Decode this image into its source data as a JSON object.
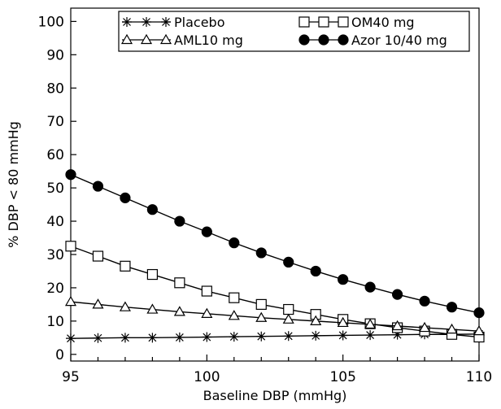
{
  "chart_data": {
    "type": "line",
    "xlabel": "Baseline DBP (mmHg)",
    "ylabel": "% DBP < 80 mmHg",
    "xlim": [
      95,
      110
    ],
    "ylim": [
      -2,
      104
    ],
    "x_ticks": [
      95,
      100,
      105,
      110
    ],
    "y_ticks": [
      0,
      10,
      20,
      30,
      40,
      50,
      60,
      70,
      80,
      90,
      100
    ],
    "grid": false,
    "legend_position": "top",
    "x": [
      95,
      96,
      97,
      98,
      99,
      100,
      101,
      102,
      103,
      104,
      105,
      106,
      107,
      108,
      109,
      110
    ],
    "series": [
      {
        "name": "Placebo",
        "marker": "asterisk",
        "fill": "none",
        "color": "#000000",
        "values": [
          4.8,
          4.9,
          5.0,
          5.0,
          5.1,
          5.2,
          5.3,
          5.4,
          5.5,
          5.6,
          5.7,
          5.8,
          5.9,
          6.0,
          6.0,
          6.1
        ]
      },
      {
        "name": "OM40 mg",
        "marker": "square",
        "fill": "none",
        "color": "#000000",
        "values": [
          32.5,
          29.5,
          26.5,
          24.0,
          21.5,
          19.0,
          17.0,
          15.0,
          13.5,
          12.0,
          10.5,
          9.2,
          8.0,
          7.0,
          6.0,
          5.2
        ]
      },
      {
        "name": "AML10 mg",
        "marker": "triangle",
        "fill": "none",
        "color": "#000000",
        "values": [
          15.8,
          15.0,
          14.2,
          13.5,
          12.8,
          12.2,
          11.6,
          11.0,
          10.5,
          10.0,
          9.5,
          9.0,
          8.5,
          8.0,
          7.5,
          7.0
        ]
      },
      {
        "name": "Azor 10/40 mg",
        "marker": "circle",
        "fill": "filled",
        "color": "#000000",
        "values": [
          54.0,
          50.5,
          47.0,
          43.5,
          40.0,
          36.8,
          33.5,
          30.5,
          27.7,
          25.0,
          22.5,
          20.2,
          18.0,
          16.0,
          14.2,
          12.5
        ]
      }
    ]
  }
}
